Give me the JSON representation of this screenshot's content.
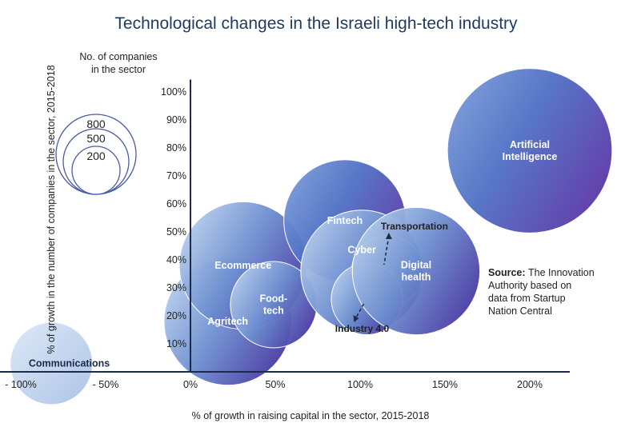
{
  "chart_data": {
    "type": "scatter",
    "title": "Technological changes in the Israeli high-tech industry",
    "xlabel": "% of growth in raising capital in the sector, 2015-2018",
    "ylabel": "% of growth in the number of companies in the sector, 2015-2018",
    "xlim": [
      -100,
      225
    ],
    "ylim": [
      0,
      105
    ],
    "x_ticks": [
      {
        "value": -100,
        "label": "- 100%"
      },
      {
        "value": -50,
        "label": "- 50%"
      },
      {
        "value": 0,
        "label": "0%"
      },
      {
        "value": 50,
        "label": "50%"
      },
      {
        "value": 100,
        "label": "100%"
      },
      {
        "value": 150,
        "label": "150%"
      },
      {
        "value": 200,
        "label": "200%"
      }
    ],
    "y_ticks": [
      {
        "value": 10,
        "label": "10%"
      },
      {
        "value": 20,
        "label": "20%"
      },
      {
        "value": 30,
        "label": "30%"
      },
      {
        "value": 40,
        "label": "40%"
      },
      {
        "value": 50,
        "label": "50%"
      },
      {
        "value": 60,
        "label": "60%"
      },
      {
        "value": 70,
        "label": "70%"
      },
      {
        "value": 80,
        "label": "80%"
      },
      {
        "value": 90,
        "label": "90%"
      },
      {
        "value": 100,
        "label": "100%"
      }
    ],
    "grid": false,
    "points": [
      {
        "id": "communications",
        "label": "Communications",
        "lines": [
          "Communications"
        ],
        "x": -82,
        "y": 3,
        "size": 200,
        "label_position": "right"
      },
      {
        "id": "agritech",
        "label": "Agritech",
        "lines": [
          "Agritech"
        ],
        "x": 22,
        "y": 18,
        "size": 480,
        "label_position": "center"
      },
      {
        "id": "ecommerce",
        "label": "Ecommerce",
        "lines": [
          "Ecommerce"
        ],
        "x": 31,
        "y": 38,
        "size": 480,
        "label_position": "center"
      },
      {
        "id": "foodtech",
        "label": "Food-tech",
        "lines": [
          "Food-",
          "tech"
        ],
        "x": 49,
        "y": 24,
        "size": 220,
        "label_position": "center"
      },
      {
        "id": "fintech",
        "label": "Fintech",
        "lines": [
          "Fintech"
        ],
        "x": 91,
        "y": 54,
        "size": 440,
        "label_position": "center"
      },
      {
        "id": "cyber",
        "label": "Cyber",
        "lines": [
          "Cyber"
        ],
        "x": 101,
        "y": 36,
        "size": 440,
        "label_position": "center-top"
      },
      {
        "id": "transportation",
        "label": "Transportation",
        "lines": [
          "Transportation"
        ],
        "x": 116,
        "y": 36,
        "size": 150,
        "label_position": "outside"
      },
      {
        "id": "industry40",
        "label": "Industry 4.0",
        "lines": [
          "Industry 4.0"
        ],
        "x": 104,
        "y": 26,
        "size": 150,
        "label_position": "outside"
      },
      {
        "id": "digital_health",
        "label": "Digital health",
        "lines": [
          "Digital",
          "health"
        ],
        "x": 133,
        "y": 36,
        "size": 480,
        "label_position": "center"
      },
      {
        "id": "ai",
        "label": "Artificial Intelligence",
        "lines": [
          "Artificial",
          "Intelligence"
        ],
        "x": 200,
        "y": 79,
        "size": 800,
        "label_position": "center"
      }
    ],
    "legend": {
      "title_lines": [
        "No. of companies",
        "in the sector"
      ],
      "sizes": [
        {
          "value": 800,
          "label": "800"
        },
        {
          "value": 500,
          "label": "500"
        },
        {
          "value": 200,
          "label": "200"
        }
      ],
      "placement": "top-left"
    },
    "source": {
      "bold": "Source:",
      "lines": [
        "The Innovation",
        "Authority based on",
        "data from Startup",
        "Nation Central"
      ]
    },
    "colors": {
      "title": "#1e3a5f",
      "bubble_light": "#c9ddf2",
      "bubble_mid": "#6d8fd0",
      "bubble_dark": "#4a3fa6",
      "legend_stroke": "#4a5aa8",
      "axis": "#1e2a4a"
    }
  }
}
